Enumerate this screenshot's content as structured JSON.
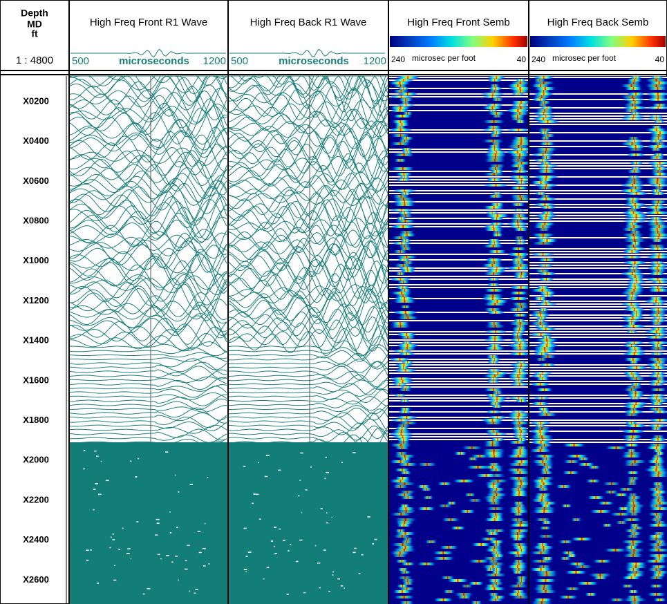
{
  "depth_track": {
    "header": [
      "Depth",
      "MD",
      "ft"
    ],
    "scale": "1 : 4800",
    "labels": [
      "X0200",
      "X0400",
      "X0600",
      "X0800",
      "X1000",
      "X1200",
      "X1400",
      "X1600",
      "X1800",
      "X2000",
      "X2200",
      "X2400",
      "X2600"
    ]
  },
  "tracks": [
    {
      "title": "High Freq Front R1 Wave",
      "scale_left": "500",
      "unit": "microseconds",
      "scale_right": "1200"
    },
    {
      "title": "High Freq Back R1 Wave",
      "scale_left": "500",
      "unit": "microseconds",
      "scale_right": "1200"
    },
    {
      "title": "High Freq Front Semb",
      "scale_left": "240",
      "unit": "microsec per foot",
      "scale_right": "40"
    },
    {
      "title": "High Freq Back Semb",
      "scale_left": "240",
      "unit": "microsec per foot",
      "scale_right": "40"
    }
  ]
}
